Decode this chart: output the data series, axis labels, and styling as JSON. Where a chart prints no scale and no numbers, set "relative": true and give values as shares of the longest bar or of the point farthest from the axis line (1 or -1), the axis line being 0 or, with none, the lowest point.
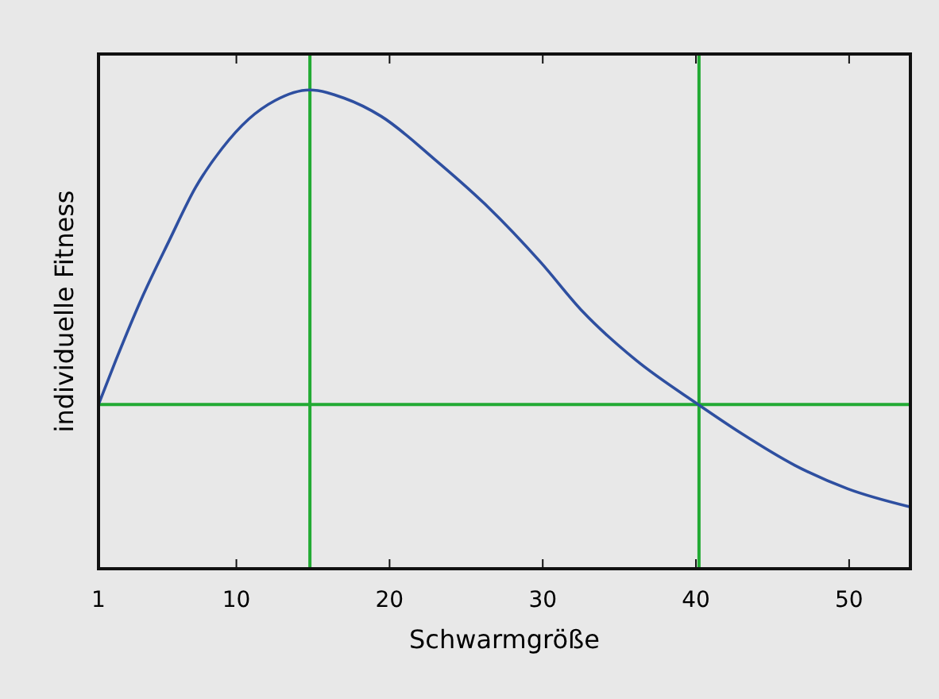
{
  "chart_data": {
    "type": "line",
    "relative": true,
    "xlabel": "Schwarmgröße",
    "ylabel": "individuelle Fitness",
    "xlim": [
      1,
      54
    ],
    "xticks": [
      1,
      10,
      20,
      30,
      40,
      50
    ],
    "series": [
      {
        "color": "#2e4fa0",
        "x": [
          1,
          2.14,
          3.88,
          5.61,
          7.33,
          9.07,
          10.8,
          12.53,
          14.78,
          17.03,
          19.45,
          22.91,
          26.38,
          29.84,
          32.61,
          36.07,
          40.15,
          43,
          46.46,
          49.91,
          54
        ],
        "values": [
          0.343,
          0.436,
          0.569,
          0.685,
          0.796,
          0.878,
          0.939,
          0.978,
          1,
          0.983,
          0.945,
          0.856,
          0.757,
          0.641,
          0.537,
          0.436,
          0.343,
          0.282,
          0.216,
          0.167,
          0.129
        ]
      }
    ],
    "ref_lines": [
      {
        "axis": "x",
        "value": 14.8,
        "color": "#22aa33"
      },
      {
        "axis": "x",
        "value": 40.2,
        "color": "#22aa33"
      },
      {
        "axis": "y",
        "value": 0.343,
        "color": "#22aa33"
      }
    ],
    "grid": false,
    "marker": "none",
    "line_style": "solid"
  }
}
